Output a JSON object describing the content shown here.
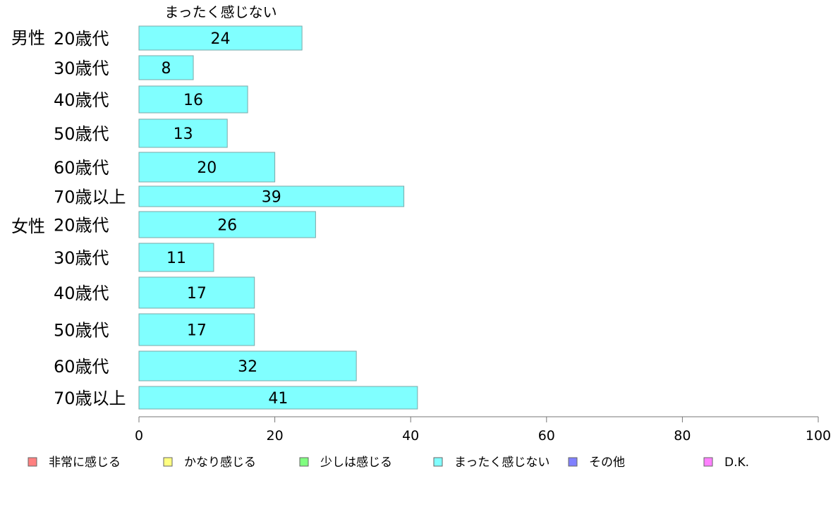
{
  "chart_data": {
    "type": "bar",
    "orientation": "horizontal",
    "series_title": "まったく感じない",
    "groups": [
      {
        "label": "男性",
        "categories": [
          "20歳代",
          "30歳代",
          "40歳代",
          "50歳代",
          "60歳代",
          "70歳以上"
        ]
      },
      {
        "label": "女性",
        "categories": [
          "20歳代",
          "30歳代",
          "40歳代",
          "50歳代",
          "60歳代",
          "70歳以上"
        ]
      }
    ],
    "series": [
      {
        "name": "まったく感じない",
        "color": "#80ffff",
        "values": [
          24,
          8,
          16,
          13,
          20,
          39,
          26,
          11,
          17,
          17,
          32,
          41
        ]
      }
    ],
    "xlim": [
      0,
      100
    ],
    "xticks": [
      0,
      20,
      40,
      60,
      80,
      100
    ],
    "grid": false,
    "legend_position": "bottom",
    "legend": [
      {
        "label": "非常に感じる",
        "color": "#ff8080"
      },
      {
        "label": "かなり感じる",
        "color": "#ffff80"
      },
      {
        "label": "少しは感じる",
        "color": "#80ff80"
      },
      {
        "label": "まったく感じない",
        "color": "#80ffff"
      },
      {
        "label": "その他",
        "color": "#8080ff"
      },
      {
        "label": "D.K.",
        "color": "#ff80ff"
      }
    ]
  }
}
